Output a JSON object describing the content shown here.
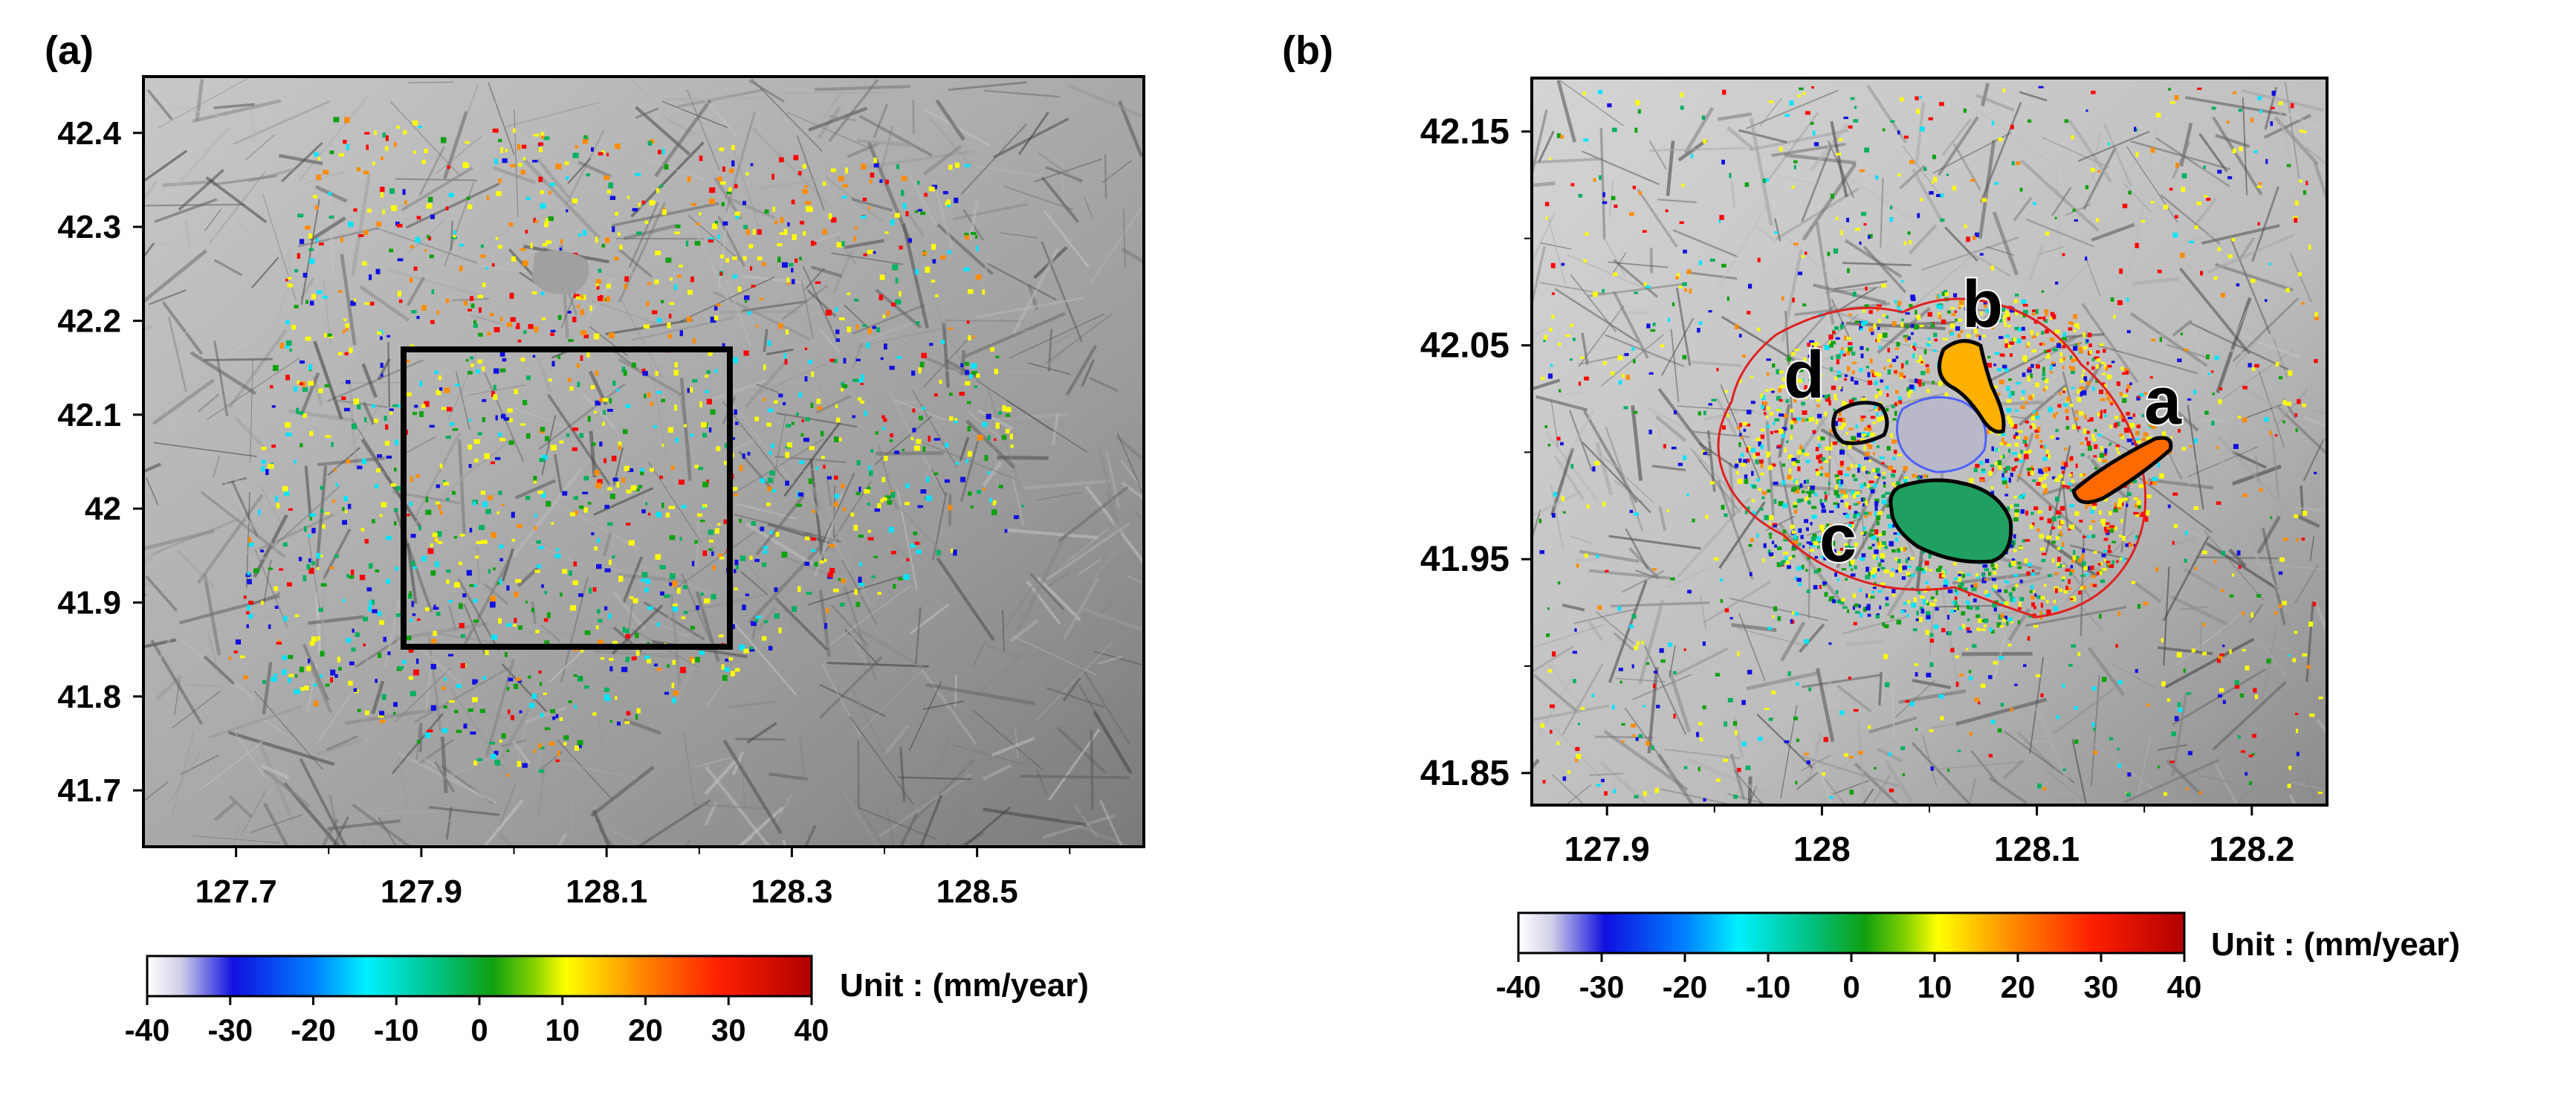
{
  "panels": [
    {
      "id": "a",
      "label": "(a)",
      "x_ticks": [
        "127.7",
        "127.9",
        "128.1",
        "128.3",
        "128.5"
      ],
      "y_ticks": [
        "42.4",
        "42.3",
        "42.2",
        "42.1",
        "42",
        "41.9",
        "41.8",
        "41.7"
      ],
      "colorbar": {
        "ticks": [
          "-40",
          "-30",
          "-20",
          "-10",
          "0",
          "10",
          "20",
          "30",
          "40"
        ],
        "unit_label": "Unit : (mm/year)"
      }
    },
    {
      "id": "b",
      "label": "(b)",
      "x_ticks": [
        "127.9",
        "128",
        "128.1",
        "128.2"
      ],
      "y_ticks": [
        "42.15",
        "42.05",
        "41.95",
        "41.85"
      ],
      "region_labels": [
        "a",
        "b",
        "c",
        "d"
      ],
      "colorbar": {
        "ticks": [
          "-40",
          "-30",
          "-20",
          "-10",
          "0",
          "10",
          "20",
          "30",
          "40"
        ],
        "unit_label": "Unit : (mm/year)"
      }
    }
  ],
  "colors": {
    "scale": [
      "#ffffff",
      "#1010e0",
      "#00e5ff",
      "#00b060",
      "#10a010",
      "#ffff00",
      "#ff8c00",
      "#ff0000",
      "#b00000"
    ],
    "boundary_red": "#e02020",
    "crater_blue": "#5060ff"
  }
}
